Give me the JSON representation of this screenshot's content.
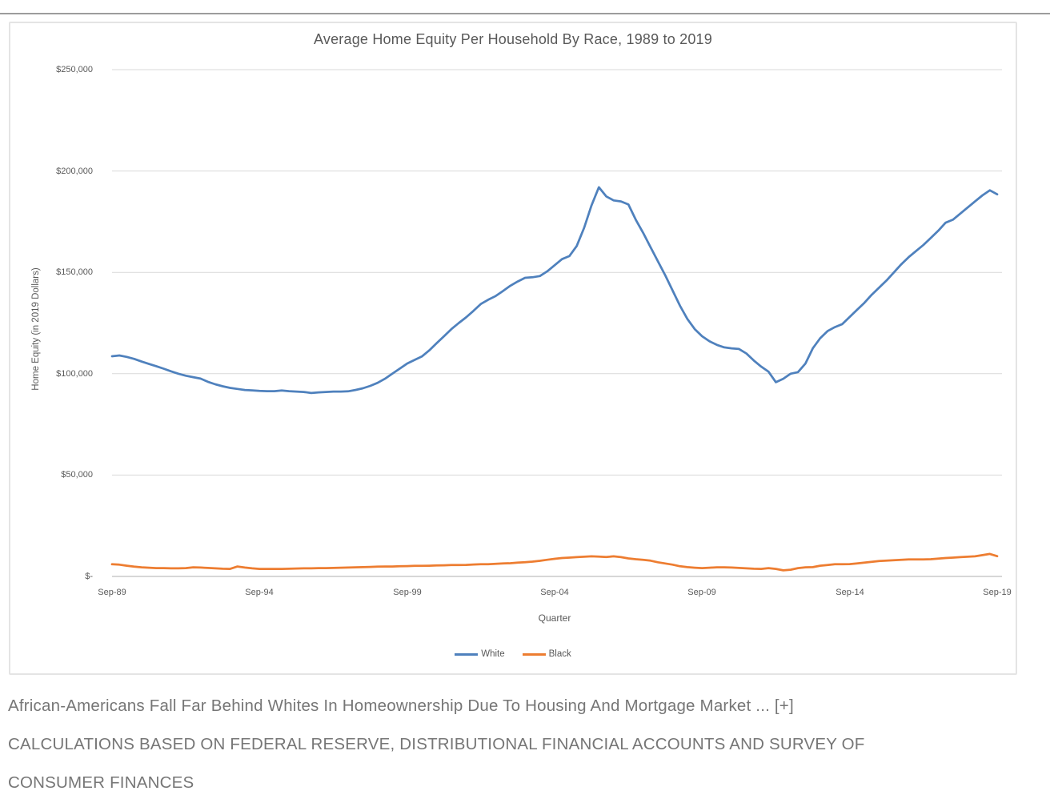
{
  "page": {
    "caption_line1": "African-Americans Fall Far Behind Whites In Homeownership Due To Housing And Mortgage Market ... [+]",
    "caption_credit_lines": [
      "CALCULATIONS BASED ON FEDERAL RESERVE, DISTRIBUTIONAL FINANCIAL ACCOUNTS AND SURVEY OF",
      "CONSUMER FINANCES"
    ]
  },
  "colors": {
    "white_series": "#4F81BD",
    "black_series": "#ED7D31",
    "gridline": "#d9d9d9",
    "axis_line": "#bfbfbf",
    "chart_text": "#595959",
    "caption_text": "#767676",
    "top_rule": "#9c9c9c"
  },
  "chart_data": {
    "type": "line",
    "title": "Average Home Equity Per Household By Race, 1989 to 2019",
    "xlabel": "Quarter",
    "ylabel": "Home Equity (in 2019 Dollars)",
    "x_start": "Sep-89",
    "x_end": "Sep-19",
    "x_frequency": "quarterly",
    "x_tick_labels": [
      "Sep-89",
      "Sep-94",
      "Sep-99",
      "Sep-04",
      "Sep-09",
      "Sep-14",
      "Sep-19"
    ],
    "y_tick_labels": [
      "$250,000",
      "$200,000",
      "$150,000",
      "$100,000",
      "$50,000",
      "$-"
    ],
    "ylim": [
      0,
      250000
    ],
    "values_unit": "thousands of 2019 USD",
    "grid": "horizontal",
    "legend_position": "bottom",
    "series": [
      {
        "name": "White",
        "color": "#4F81BD",
        "values": [
          108.6,
          109.0,
          108.3,
          107.3,
          106.0,
          104.8,
          103.7,
          102.5,
          101.2,
          100.0,
          99.0,
          98.3,
          97.6,
          96.0,
          94.8,
          93.8,
          93.0,
          92.5,
          92.0,
          91.8,
          91.5,
          91.4,
          91.4,
          91.7,
          91.4,
          91.2,
          91.0,
          90.5,
          90.8,
          91.0,
          91.2,
          91.2,
          91.3,
          92.0,
          92.8,
          94.0,
          95.5,
          97.5,
          100.0,
          102.5,
          105.0,
          106.8,
          108.5,
          111.5,
          115.0,
          118.5,
          122.0,
          125.0,
          127.8,
          131.0,
          134.4,
          136.5,
          138.3,
          140.8,
          143.4,
          145.5,
          147.3,
          147.6,
          148.2,
          150.5,
          153.5,
          156.5,
          158.0,
          163.0,
          172.0,
          183.0,
          192.0,
          187.5,
          185.5,
          185.0,
          183.5,
          176.0,
          169.5,
          162.5,
          155.5,
          148.5,
          141.0,
          133.5,
          127.0,
          122.0,
          118.5,
          116.0,
          114.2,
          113.0,
          112.5,
          112.2,
          110.0,
          106.5,
          103.5,
          101.0,
          95.8,
          97.5,
          100.0,
          100.8,
          105.0,
          112.5,
          117.5,
          121.0,
          123.0,
          124.5,
          128.0,
          131.5,
          135.0,
          139.0,
          142.5,
          146.0,
          150.0,
          154.0,
          157.5,
          160.5,
          163.5,
          167.0,
          170.5,
          174.5,
          176.0,
          179.0,
          182.0,
          185.0,
          188.0,
          190.5,
          188.5
        ]
      },
      {
        "name": "Black",
        "color": "#ED7D31",
        "values": [
          6.0,
          5.8,
          5.3,
          4.8,
          4.5,
          4.3,
          4.1,
          4.1,
          4.0,
          4.0,
          4.1,
          4.5,
          4.4,
          4.2,
          4.0,
          3.8,
          3.7,
          4.9,
          4.4,
          4.0,
          3.7,
          3.7,
          3.7,
          3.7,
          3.8,
          3.9,
          4.0,
          4.0,
          4.1,
          4.1,
          4.2,
          4.3,
          4.4,
          4.5,
          4.6,
          4.7,
          4.8,
          4.9,
          4.9,
          5.0,
          5.1,
          5.2,
          5.2,
          5.3,
          5.4,
          5.5,
          5.6,
          5.6,
          5.7,
          5.9,
          6.0,
          6.0,
          6.2,
          6.4,
          6.5,
          6.8,
          7.0,
          7.3,
          7.7,
          8.2,
          8.7,
          9.1,
          9.3,
          9.5,
          9.7,
          9.9,
          9.8,
          9.6,
          9.9,
          9.5,
          8.9,
          8.5,
          8.2,
          7.8,
          7.0,
          6.4,
          5.8,
          5.0,
          4.6,
          4.3,
          4.1,
          4.3,
          4.5,
          4.5,
          4.4,
          4.2,
          4.0,
          3.8,
          3.7,
          4.1,
          3.7,
          3.0,
          3.3,
          4.1,
          4.5,
          4.6,
          5.3,
          5.6,
          6.0,
          6.0,
          6.1,
          6.4,
          6.8,
          7.2,
          7.6,
          7.8,
          8.0,
          8.2,
          8.4,
          8.4,
          8.4,
          8.5,
          8.8,
          9.1,
          9.3,
          9.5,
          9.7,
          9.9,
          10.5,
          11.1,
          10.0
        ]
      }
    ]
  }
}
